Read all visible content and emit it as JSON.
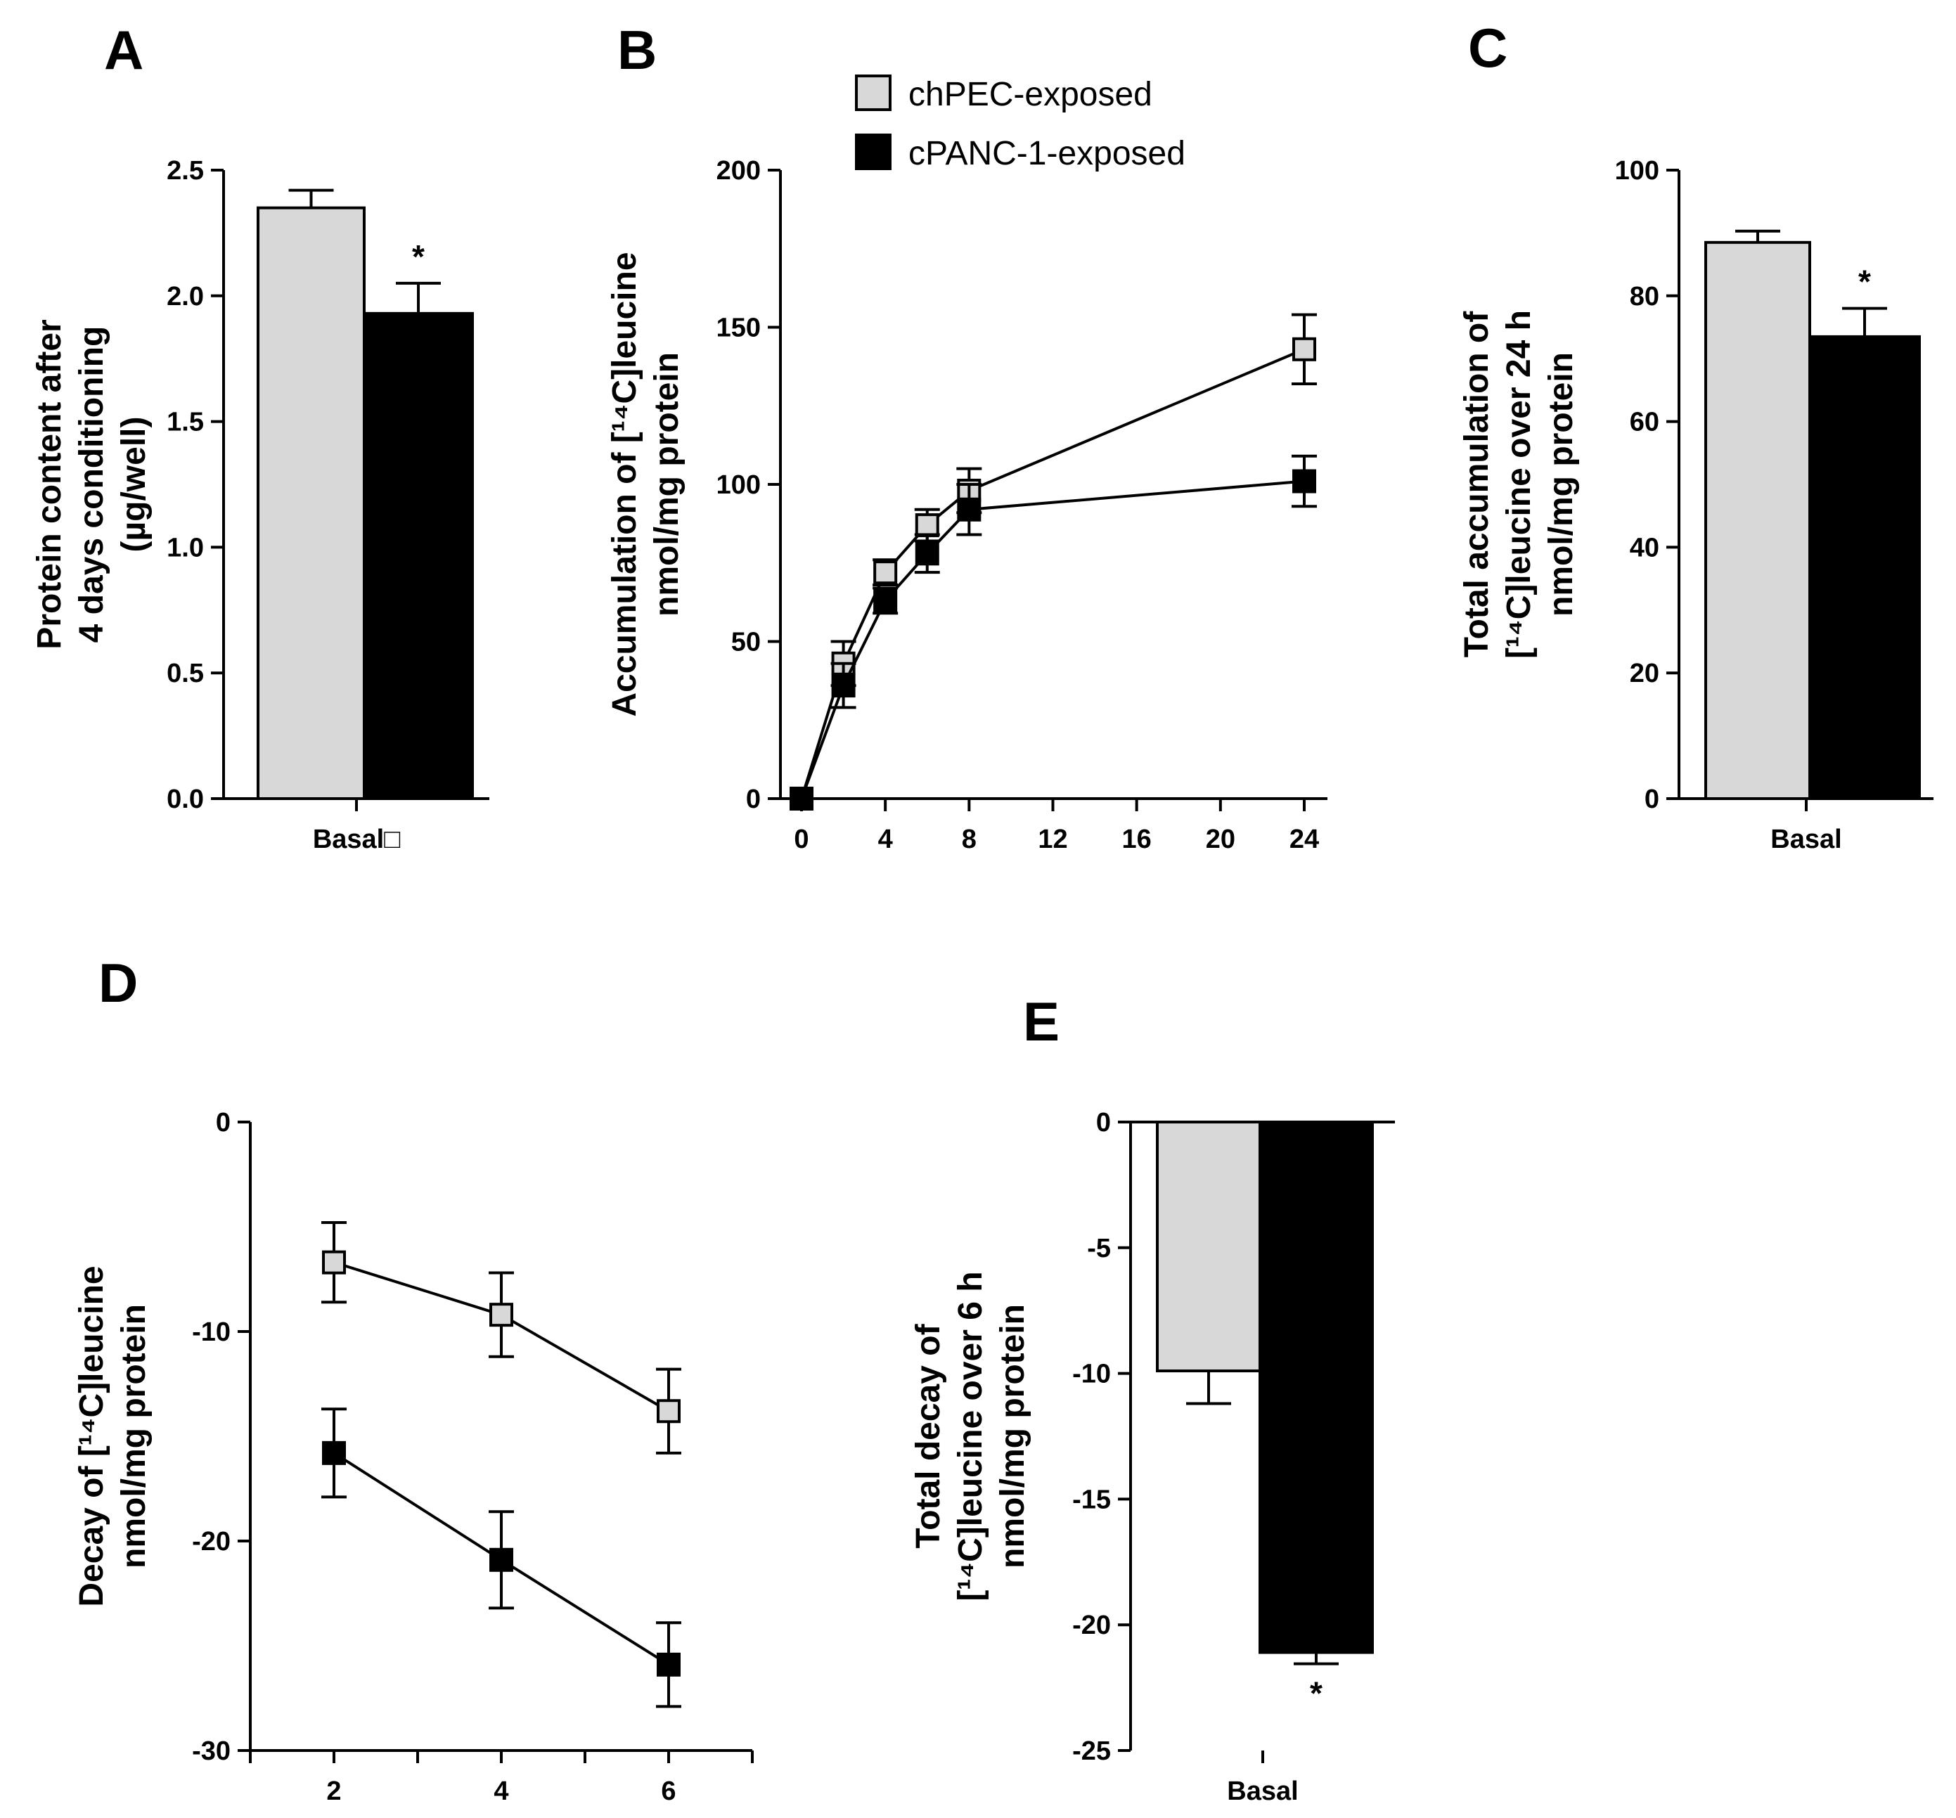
{
  "colors": {
    "chpec": "#d8d8d8",
    "cpanc": "#000000",
    "axis": "#000000"
  },
  "legend": {
    "position": "top-right of panel B",
    "items": [
      {
        "label": "chPEC-exposed",
        "color": "#d8d8d8"
      },
      {
        "label": "cPANC-1-exposed",
        "color": "#000000"
      }
    ]
  },
  "chart_data": [
    {
      "id": "A",
      "panel_label": "A",
      "type": "bar",
      "ylabel_lines": [
        "Protein content after",
        "4 days conditioning",
        "(µg/well)"
      ],
      "categories": [
        "Basal□"
      ],
      "ylim": [
        0,
        2.5
      ],
      "yticks": [
        0.0,
        0.5,
        1.0,
        1.5,
        2.0,
        2.5
      ],
      "ytick_labels": [
        "0.0",
        "0.5",
        "1.0",
        "1.5",
        "2.0",
        "2.5"
      ],
      "series": [
        {
          "name": "chPEC-exposed",
          "values": [
            2.35
          ],
          "errors": [
            0.07
          ]
        },
        {
          "name": "cPANC-1-exposed",
          "values": [
            1.93
          ],
          "errors": [
            0.12
          ],
          "annotation": "*"
        }
      ]
    },
    {
      "id": "B",
      "panel_label": "B",
      "type": "line",
      "ylabel_lines": [
        "Accumulation of [¹⁴C]leucine",
        "nmol/mg protein"
      ],
      "xlim": [
        0,
        24
      ],
      "xticks": [
        0,
        4,
        8,
        12,
        16,
        20,
        24
      ],
      "xtick_labels": [
        "0",
        "4",
        "8",
        "12",
        "16",
        "20",
        "24"
      ],
      "ylim": [
        0,
        200
      ],
      "yticks": [
        0,
        50,
        100,
        150,
        200
      ],
      "ytick_labels": [
        "0",
        "50",
        "100",
        "150",
        "200"
      ],
      "series": [
        {
          "name": "chPEC-exposed",
          "x": [
            0,
            2,
            4,
            6,
            8,
            24
          ],
          "y": [
            0,
            43,
            72,
            87,
            98,
            143
          ],
          "errors": [
            0,
            7,
            4,
            5,
            7,
            11
          ]
        },
        {
          "name": "cPANC-1-exposed",
          "x": [
            0,
            2,
            4,
            6,
            8,
            24
          ],
          "y": [
            0,
            36,
            63,
            78,
            92,
            101
          ],
          "errors": [
            0,
            7,
            4,
            6,
            8,
            8
          ]
        }
      ]
    },
    {
      "id": "C",
      "panel_label": "C",
      "type": "bar",
      "ylabel_lines": [
        "Total accumulation of",
        "[¹⁴C]leucine over 24 h",
        "nmol/mg protein"
      ],
      "categories": [
        "Basal"
      ],
      "ylim": [
        0,
        100
      ],
      "yticks": [
        0,
        20,
        40,
        60,
        80,
        100
      ],
      "ytick_labels": [
        "0",
        "20",
        "40",
        "60",
        "80",
        "100"
      ],
      "series": [
        {
          "name": "chPEC-exposed",
          "values": [
            88.5
          ],
          "errors": [
            1.8
          ]
        },
        {
          "name": "cPANC-1-exposed",
          "values": [
            73.5
          ],
          "errors": [
            4.5
          ],
          "annotation": "*"
        }
      ]
    },
    {
      "id": "D",
      "panel_label": "D",
      "type": "line",
      "ylabel_lines": [
        "Decay of [¹⁴C]leucine",
        "nmol/mg protein"
      ],
      "xlim": [
        1,
        7
      ],
      "xticks": [
        1,
        2,
        3,
        4,
        5,
        6,
        7
      ],
      "xtick_labels": [
        "",
        "2",
        "",
        "4",
        "",
        "6",
        ""
      ],
      "ylim": [
        -30,
        0
      ],
      "yticks": [
        -30,
        -20,
        -10,
        0
      ],
      "ytick_labels": [
        "-30",
        "-20",
        "-10",
        "0"
      ],
      "series": [
        {
          "name": "chPEC-exposed",
          "x": [
            2,
            4,
            6
          ],
          "y": [
            -6.7,
            -9.2,
            -13.8
          ],
          "errors": [
            1.9,
            2.0,
            2.0
          ]
        },
        {
          "name": "cPANC-1-exposed",
          "x": [
            2,
            4,
            6
          ],
          "y": [
            -15.8,
            -20.9,
            -25.9
          ],
          "errors": [
            2.1,
            2.3,
            2.0
          ]
        }
      ]
    },
    {
      "id": "E",
      "panel_label": "E",
      "type": "bar",
      "ylabel_lines": [
        "Total decay of",
        "[¹⁴C]leucine over 6 h",
        "nmol/mg protein"
      ],
      "categories": [
        "Basal"
      ],
      "ylim": [
        -25,
        0
      ],
      "yticks": [
        -25,
        -20,
        -15,
        -10,
        -5,
        0
      ],
      "ytick_labels": [
        "-25",
        "-20",
        "-15",
        "-10",
        "-5",
        "0"
      ],
      "series": [
        {
          "name": "chPEC-exposed",
          "values": [
            -9.9
          ],
          "errors": [
            1.3
          ]
        },
        {
          "name": "cPANC-1-exposed",
          "values": [
            -21.1
          ],
          "errors": [
            0.45
          ],
          "annotation": "*"
        }
      ]
    }
  ]
}
